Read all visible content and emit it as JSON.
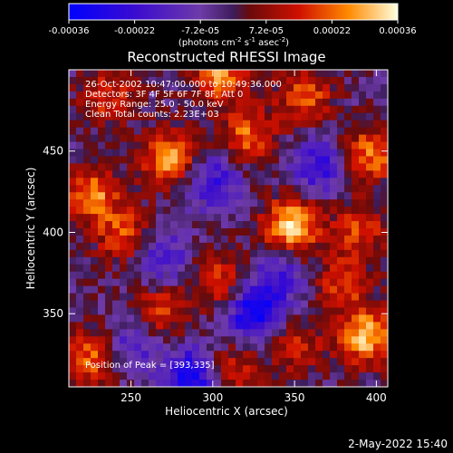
{
  "chart_data": {
    "type": "heatmap",
    "title": "Reconstructed RHESSI Image",
    "xlabel": "Heliocentric X (arcsec)",
    "ylabel": "Heliocentric Y (arcsec)",
    "xlim": [
      212,
      407
    ],
    "ylim": [
      305,
      500
    ],
    "x_ticks": [
      250,
      300,
      350,
      400
    ],
    "y_ticks": [
      350,
      400,
      450
    ],
    "colorbar": {
      "min": -0.00036,
      "max": 0.00036,
      "ticks": [
        "-0.00036",
        "-0.00022",
        "-7.2e-05",
        "7.2e-05",
        "0.00022",
        "0.00036"
      ],
      "unit_label": "(photons cm",
      "unit_exp1": "-2",
      "unit_mid": " s",
      "unit_exp2": "-1",
      "unit_mid2": " asec",
      "unit_exp3": "-2",
      "unit_end": ")"
    },
    "annotations": [
      "26-Oct-2002 10:47:00.000 to 10:49:36.000",
      "Detectors: 3F 4F 5F 6F 7F 8F, Att 0",
      "Energy Range: 25.0 - 50.0 keV",
      "Clean     Total counts: 2.23E+03"
    ],
    "peak_label": "Position of Peak = [393,335]",
    "peak": [
      393,
      335
    ],
    "hotspots": [
      {
        "x": 348,
        "y": 404,
        "v": 1.0
      },
      {
        "x": 394,
        "y": 336,
        "v": 0.9
      },
      {
        "x": 304,
        "y": 497,
        "v": 0.75
      },
      {
        "x": 274,
        "y": 445,
        "v": 0.8
      },
      {
        "x": 321,
        "y": 459,
        "v": 0.65
      },
      {
        "x": 356,
        "y": 483,
        "v": 0.6
      },
      {
        "x": 396,
        "y": 448,
        "v": 0.7
      },
      {
        "x": 226,
        "y": 423,
        "v": 0.75
      },
      {
        "x": 246,
        "y": 398,
        "v": 0.6
      },
      {
        "x": 226,
        "y": 322,
        "v": 0.7
      },
      {
        "x": 304,
        "y": 370,
        "v": 0.55
      },
      {
        "x": 350,
        "y": 330,
        "v": 0.45
      },
      {
        "x": 312,
        "y": 316,
        "v": 0.5
      },
      {
        "x": 268,
        "y": 352,
        "v": 0.55
      },
      {
        "x": 390,
        "y": 402,
        "v": 0.55
      },
      {
        "x": 236,
        "y": 484,
        "v": 0.5
      },
      {
        "x": 380,
        "y": 369,
        "v": 0.5
      }
    ],
    "coldspots": [
      {
        "x": 288,
        "y": 312,
        "v": -0.85
      },
      {
        "x": 325,
        "y": 350,
        "v": -0.9
      },
      {
        "x": 300,
        "y": 432,
        "v": -0.6
      },
      {
        "x": 268,
        "y": 384,
        "v": -0.55
      },
      {
        "x": 366,
        "y": 440,
        "v": -0.6
      },
      {
        "x": 250,
        "y": 330,
        "v": -0.5
      },
      {
        "x": 340,
        "y": 372,
        "v": -0.5
      }
    ]
  },
  "timestamp": "2-May-2022 15:40"
}
